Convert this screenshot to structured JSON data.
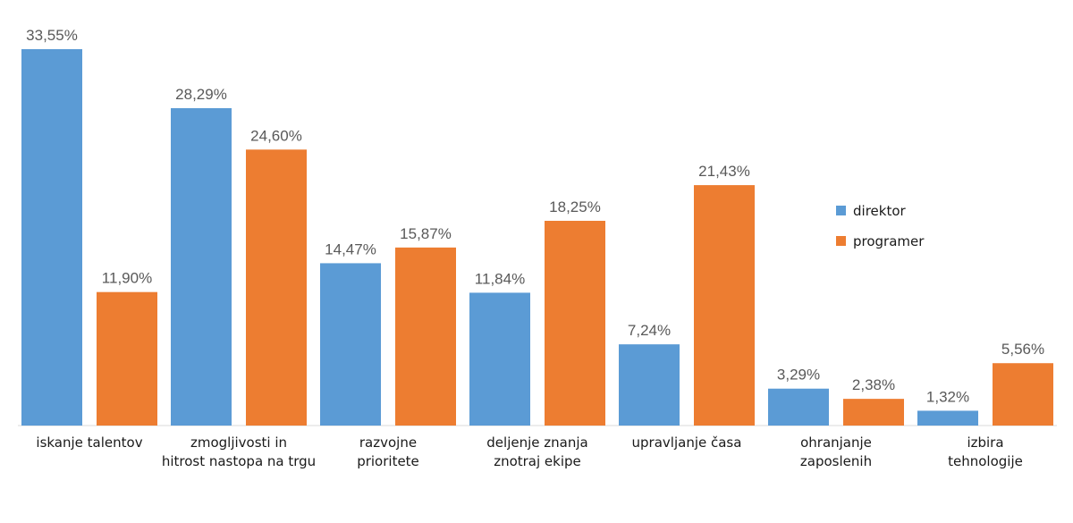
{
  "chart_data": {
    "type": "bar",
    "categories": [
      [
        "iskanje talentov"
      ],
      [
        "zmogljivosti in",
        "hitrost nastopa na trgu"
      ],
      [
        "razvojne",
        "prioritete"
      ],
      [
        "deljenje znanja",
        "znotraj ekipe"
      ],
      [
        "upravljanje časa"
      ],
      [
        "ohranjanje",
        "zaposlenih"
      ],
      [
        "izbira",
        "tehnologije"
      ]
    ],
    "series": [
      {
        "name": "direktor",
        "color": "#5b9bd5",
        "values": [
          33.55,
          28.29,
          14.47,
          11.84,
          7.24,
          3.29,
          1.32
        ],
        "labels": [
          "33,55%",
          "28,29%",
          "14,47%",
          "11,84%",
          "7,24%",
          "3,29%",
          "1,32%"
        ]
      },
      {
        "name": "programer",
        "color": "#ed7d31",
        "values": [
          11.9,
          24.6,
          15.87,
          18.25,
          21.43,
          2.38,
          5.56
        ],
        "labels": [
          "11,90%",
          "24,60%",
          "15,87%",
          "18,25%",
          "21,43%",
          "2,38%",
          "5,56%"
        ]
      }
    ],
    "ylim": [
      0,
      33.55
    ],
    "grid": false,
    "legend_position": "right"
  }
}
